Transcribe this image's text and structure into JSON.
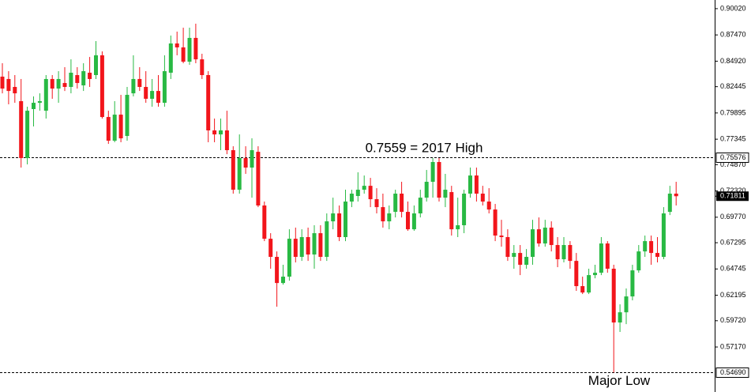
{
  "chart_data": {
    "type": "candlestick",
    "up_color": "#28b943",
    "down_color": "#f2151b",
    "ylim": [
      0.528,
      0.9086
    ],
    "yticks": [
      {
        "value": 0.9002,
        "label": "0.90020"
      },
      {
        "value": 0.8747,
        "label": "0.87470"
      },
      {
        "value": 0.8492,
        "label": "0.84920"
      },
      0.82445,
      0.79895,
      0.77345,
      {
        "value": 0.7487,
        "label": "0.74870"
      },
      {
        "value": 0.7232,
        "label": "0.72320"
      },
      {
        "value": 0.6977,
        "label": "0.69770"
      },
      0.67295,
      0.64745,
      0.62195,
      {
        "value": 0.5972,
        "label": "0.59720"
      },
      {
        "value": 0.5717,
        "label": "0.57170"
      }
    ],
    "levels": [
      0.75576,
      {
        "value": 0.5469,
        "label": "0.54690"
      }
    ],
    "current_price": 0.71811,
    "annotations": [
      {
        "text": "0.7559 = 2017 High",
        "value": 0.7559
      },
      {
        "text": "Major Low",
        "value": 0.5469
      }
    ],
    "open": [
      0.8342,
      0.8319,
      0.8242,
      0.8104,
      0.7551,
      0.8027,
      0.8088,
      0.8011,
      0.8319,
      0.8226,
      0.828,
      0.8242,
      0.8357,
      0.8257,
      0.838,
      0.8357,
      0.8549,
      0.795,
      0.772,
      0.7973,
      0.7766,
      0.818,
      0.8319,
      0.8242,
      0.8127,
      0.8203,
      0.8088,
      0.838,
      0.8664,
      0.8626,
      0.8487,
      0.8718,
      0.851,
      0.8357,
      0.782,
      0.7781,
      0.782,
      0.7628,
      0.7244,
      0.7551,
      0.7459,
      0.7612,
      0.7091,
      0.6768,
      0.6592,
      0.6338,
      0.64,
      0.6768,
      0.6592,
      0.6784,
      0.6615,
      0.6822,
      0.6592,
      0.6937,
      0.7014,
      0.6784,
      0.7129,
      0.7183,
      0.7244,
      0.7282,
      0.7152,
      0.7075,
      0.6937,
      0.7029,
      0.7206,
      0.7029,
      0.686,
      0.7014,
      0.7167,
      0.7321,
      0.7513,
      0.7167,
      0.7221,
      0.686,
      0.6899,
      0.7206,
      0.7382,
      0.7206,
      0.7129,
      0.7052,
      0.6799,
      0.6784,
      0.6592,
      0.663,
      0.6515,
      0.6592,
      0.686,
      0.6722,
      0.6876,
      0.6707,
      0.6569,
      0.6707,
      0.6553,
      0.6308,
      0.6246,
      0.6415,
      0.6438,
      0.6722,
      0.6477,
      0.5955,
      0.6054,
      0.6208,
      0.6461,
      0.6645,
      0.6745,
      0.663,
      0.6592,
      0.7029,
      0.7206
    ],
    "high": [
      0.8472,
      0.8395,
      0.8357,
      0.8319,
      0.805,
      0.815,
      0.818,
      0.8357,
      0.8357,
      0.8395,
      0.8434,
      0.851,
      0.8434,
      0.8472,
      0.8533,
      0.8687,
      0.8587,
      0.8011,
      0.8104,
      0.8165,
      0.8242,
      0.8549,
      0.8434,
      0.8395,
      0.8319,
      0.8357,
      0.8549,
      0.8741,
      0.8779,
      0.8817,
      0.8817,
      0.8856,
      0.8564,
      0.8395,
      0.7935,
      0.7935,
      0.8011,
      0.7666,
      0.7781,
      0.7666,
      0.7743,
      0.7666,
      0.7129,
      0.6822,
      0.6645,
      0.6515,
      0.686,
      0.6876,
      0.686,
      0.6876,
      0.6899,
      0.6899,
      0.7014,
      0.7167,
      0.7091,
      0.7244,
      0.7244,
      0.7413,
      0.7382,
      0.7359,
      0.7259,
      0.7206,
      0.7091,
      0.7244,
      0.7321,
      0.7129,
      0.7091,
      0.7244,
      0.7436,
      0.7551,
      0.7551,
      0.7398,
      0.7282,
      0.7167,
      0.7244,
      0.7459,
      0.7459,
      0.7282,
      0.7259,
      0.7106,
      0.6952,
      0.686,
      0.6707,
      0.6707,
      0.6668,
      0.6952,
      0.6975,
      0.6952,
      0.6937,
      0.6784,
      0.6784,
      0.6745,
      0.663,
      0.64,
      0.6477,
      0.6515,
      0.6784,
      0.6745,
      0.6515,
      0.6131,
      0.6285,
      0.6515,
      0.6707,
      0.6799,
      0.6799,
      0.6784,
      0.7075,
      0.7282,
      0.7321
    ],
    "low": [
      0.818,
      0.8073,
      0.8088,
      0.7459,
      0.749,
      0.7858,
      0.8011,
      0.7935,
      0.8127,
      0.8088,
      0.8203,
      0.818,
      0.8226,
      0.8203,
      0.8242,
      0.8319,
      0.7935,
      0.7689,
      0.7705,
      0.7705,
      0.772,
      0.815,
      0.8203,
      0.8088,
      0.805,
      0.805,
      0.805,
      0.8319,
      0.8549,
      0.8472,
      0.8457,
      0.8472,
      0.8319,
      0.7705,
      0.7705,
      0.7628,
      0.7589,
      0.7206,
      0.7206,
      0.7398,
      0.7167,
      0.7075,
      0.6745,
      0.6477,
      0.6108,
      0.6323,
      0.6361,
      0.6538,
      0.6553,
      0.6553,
      0.6477,
      0.6553,
      0.6553,
      0.686,
      0.6745,
      0.6745,
      0.7075,
      0.7129,
      0.7206,
      0.7075,
      0.7014,
      0.6876,
      0.686,
      0.6975,
      0.6975,
      0.6845,
      0.6845,
      0.6975,
      0.7129,
      0.7167,
      0.7129,
      0.7075,
      0.6799,
      0.6784,
      0.6822,
      0.7167,
      0.7129,
      0.7091,
      0.7014,
      0.6745,
      0.6691,
      0.6553,
      0.6477,
      0.6415,
      0.6477,
      0.6515,
      0.6691,
      0.6691,
      0.6645,
      0.6492,
      0.6538,
      0.6477,
      0.6262,
      0.6231,
      0.6231,
      0.6384,
      0.6415,
      0.6438,
      0.5469,
      0.5863,
      0.5939,
      0.617,
      0.6438,
      0.6592,
      0.6515,
      0.6538,
      0.6569,
      0.6998,
      0.7091
    ],
    "close": [
      0.8226,
      0.8203,
      0.818,
      0.7551,
      0.8011,
      0.8088,
      0.8104,
      0.8319,
      0.8226,
      0.8319,
      0.8242,
      0.838,
      0.828,
      0.8395,
      0.8319,
      0.8549,
      0.795,
      0.772,
      0.7973,
      0.7743,
      0.8165,
      0.8319,
      0.8242,
      0.8127,
      0.8203,
      0.8088,
      0.8395,
      0.8664,
      0.8626,
      0.8487,
      0.8718,
      0.851,
      0.8357,
      0.782,
      0.7781,
      0.782,
      0.7628,
      0.7244,
      0.7551,
      0.7459,
      0.7628,
      0.7091,
      0.6768,
      0.6592,
      0.6338,
      0.64,
      0.6768,
      0.6592,
      0.6784,
      0.6615,
      0.6822,
      0.6592,
      0.6937,
      0.7014,
      0.6784,
      0.7129,
      0.7206,
      0.7244,
      0.7282,
      0.7152,
      0.7075,
      0.6937,
      0.7014,
      0.7206,
      0.7029,
      0.686,
      0.7014,
      0.7167,
      0.7321,
      0.7513,
      0.7167,
      0.7244,
      0.686,
      0.6899,
      0.7206,
      0.7382,
      0.7206,
      0.7129,
      0.7052,
      0.6799,
      0.6784,
      0.6592,
      0.663,
      0.6515,
      0.6592,
      0.686,
      0.6722,
      0.6876,
      0.6707,
      0.6569,
      0.6707,
      0.6553,
      0.6308,
      0.6246,
      0.6415,
      0.6438,
      0.6722,
      0.6477,
      0.5955,
      0.6054,
      0.6208,
      0.6461,
      0.6645,
      0.6745,
      0.663,
      0.6592,
      0.7014,
      0.7206,
      0.7181
    ]
  }
}
